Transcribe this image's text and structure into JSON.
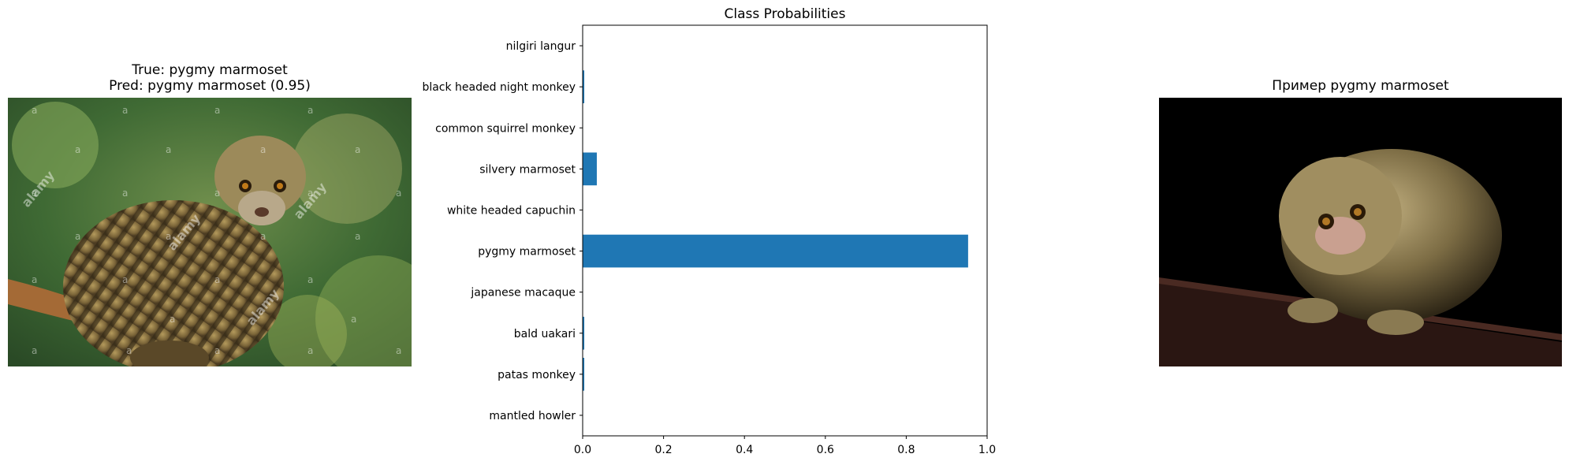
{
  "left_panel": {
    "title_line1": "True: pygmy marmoset",
    "title_line2": "Pred: pygmy marmoset (0.95)",
    "watermark": "alamy"
  },
  "right_panel": {
    "title": "Пример pygmy marmoset"
  },
  "chart_data": {
    "type": "bar",
    "orientation": "horizontal",
    "title": "Class Probabilities",
    "xlabel": "",
    "ylabel": "",
    "xlim": [
      0,
      1.0
    ],
    "xticks": [
      "0.0",
      "0.2",
      "0.4",
      "0.6",
      "0.8",
      "1.0"
    ],
    "grid": false,
    "color": "#1f77b4",
    "categories": [
      "nilgiri langur",
      "black headed night monkey",
      "common squirrel monkey",
      "silvery marmoset",
      "white headed capuchin",
      "pygmy marmoset",
      "japanese macaque",
      "bald uakari",
      "patas monkey",
      "mantled howler"
    ],
    "values": [
      0.001,
      0.004,
      0.001,
      0.035,
      0.001,
      0.953,
      0.001,
      0.004,
      0.004,
      0.001
    ]
  }
}
